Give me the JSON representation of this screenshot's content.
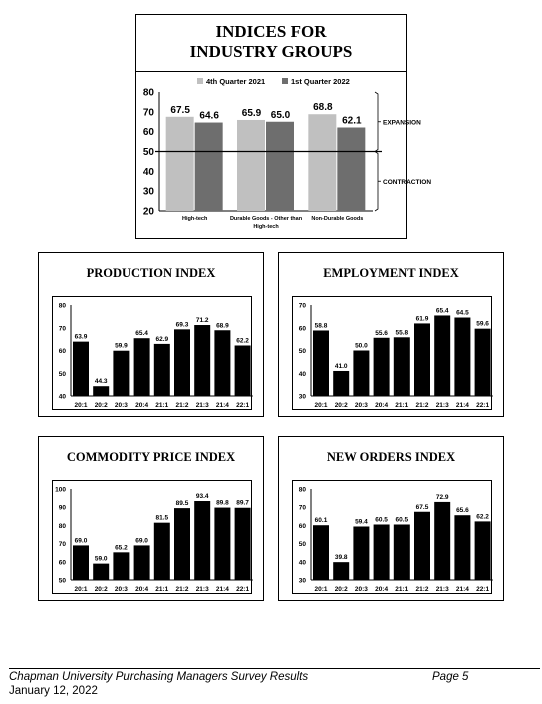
{
  "industry": {
    "title_line1": "INDICES FOR",
    "title_line2": "INDUSTRY GROUPS",
    "expansion_label": "EXPANSION",
    "contraction_label": "CONTRACTION"
  },
  "footer": {
    "title": "Chapman University Purchasing Managers Survey Results",
    "page": "Page 5",
    "date": "January 12, 2022"
  },
  "chart_data": [
    {
      "type": "bar",
      "title": "INDICES FOR INDUSTRY GROUPS",
      "categories": [
        "High-tech",
        "Durable Goods - Other than High-tech",
        "Non-Durable Goods"
      ],
      "category_lines": [
        [
          "High-tech"
        ],
        [
          "Durable Goods - Other than",
          "High-tech"
        ],
        [
          "Non-Durable Goods"
        ]
      ],
      "series": [
        {
          "name": "4th Quarter 2021",
          "values": [
            67.5,
            65.9,
            68.8
          ],
          "color": "#c0c0c0"
        },
        {
          "name": "1st Quarter 2022",
          "values": [
            64.6,
            65.0,
            62.1
          ],
          "color": "#6e6e6e"
        }
      ],
      "ylim": [
        20,
        80
      ],
      "yticks": [
        20,
        30,
        40,
        50,
        60,
        70,
        80
      ],
      "reference_line": 50,
      "legend": "top",
      "grid": false
    },
    {
      "type": "bar",
      "title": "PRODUCTION INDEX",
      "categories": [
        "20:1",
        "20:2",
        "20:3",
        "20:4",
        "21:1",
        "21:2",
        "21:3",
        "21:4",
        "22:1"
      ],
      "values": [
        63.9,
        44.3,
        59.9,
        65.4,
        62.9,
        69.3,
        71.2,
        68.9,
        62.2
      ],
      "ylim": [
        40,
        80
      ],
      "yticks": [
        40,
        50,
        60,
        70,
        80
      ],
      "color": "#000000",
      "grid": false
    },
    {
      "type": "bar",
      "title": "EMPLOYMENT INDEX",
      "categories": [
        "20:1",
        "20:2",
        "20:3",
        "20:4",
        "21:1",
        "21:2",
        "21:3",
        "21:4",
        "22:1"
      ],
      "values": [
        58.8,
        41.0,
        50.0,
        55.6,
        55.8,
        61.9,
        65.4,
        64.5,
        59.6
      ],
      "ylim": [
        30,
        70
      ],
      "yticks": [
        30,
        40,
        50,
        60,
        70
      ],
      "color": "#000000",
      "grid": false
    },
    {
      "type": "bar",
      "title": "COMMODITY PRICE INDEX",
      "categories": [
        "20:1",
        "20:2",
        "20:3",
        "20:4",
        "21:1",
        "21:2",
        "21:3",
        "21:4",
        "22:1"
      ],
      "values": [
        69.0,
        59.0,
        65.2,
        69.0,
        81.5,
        89.5,
        93.4,
        89.8,
        89.7
      ],
      "ylim": [
        50,
        100
      ],
      "yticks": [
        50,
        60,
        70,
        80,
        90,
        100
      ],
      "color": "#000000",
      "grid": false
    },
    {
      "type": "bar",
      "title": "NEW ORDERS INDEX",
      "categories": [
        "20:1",
        "20:2",
        "20:3",
        "20:4",
        "21:1",
        "21:2",
        "21:3",
        "21:4",
        "22:1"
      ],
      "values": [
        60.1,
        39.8,
        59.4,
        60.5,
        60.5,
        67.5,
        72.9,
        65.6,
        62.2
      ],
      "ylim": [
        30,
        80
      ],
      "yticks": [
        30,
        40,
        50,
        60,
        70,
        80
      ],
      "color": "#000000",
      "grid": false
    }
  ]
}
